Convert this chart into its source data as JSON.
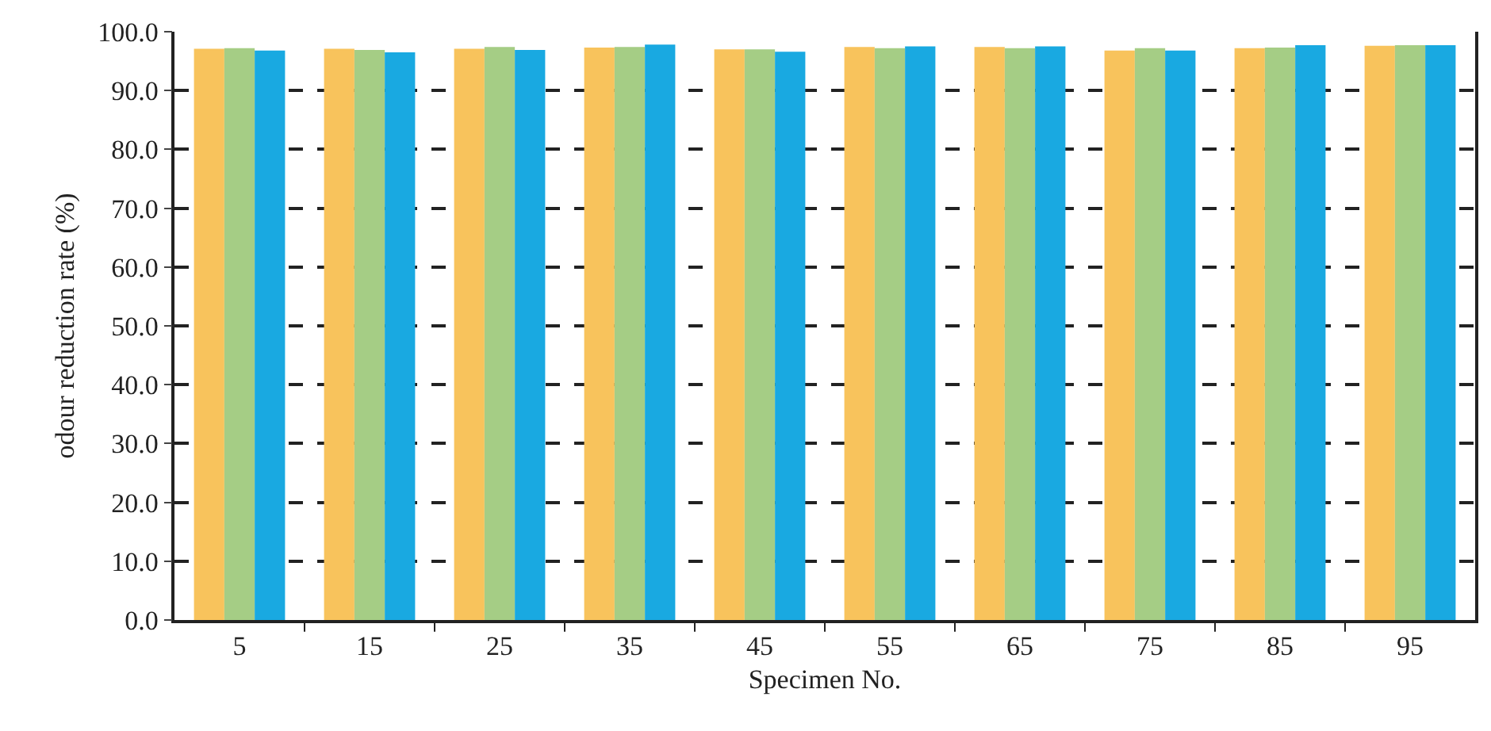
{
  "chart_data": {
    "type": "bar",
    "xlabel": "Specimen No.",
    "ylabel": "odour reduction rate (%)",
    "categories": [
      "5",
      "15",
      "25",
      "35",
      "45",
      "55",
      "65",
      "75",
      "85",
      "95"
    ],
    "series": [
      {
        "color": "#f8c35c",
        "values": [
          97.1,
          97.1,
          97.1,
          97.3,
          97.0,
          97.4,
          97.4,
          96.8,
          97.2,
          97.6
        ]
      },
      {
        "color": "#a5cd85",
        "values": [
          97.2,
          96.9,
          97.4,
          97.4,
          97.0,
          97.2,
          97.2,
          97.2,
          97.3,
          97.7
        ]
      },
      {
        "color": "#19a9e1",
        "values": [
          96.8,
          96.5,
          96.9,
          97.8,
          96.6,
          97.5,
          97.5,
          96.8,
          97.7,
          97.7
        ]
      }
    ],
    "ylim": [
      0,
      100
    ],
    "yticks": [
      {
        "value": 0,
        "label": "0.0"
      },
      {
        "value": 10,
        "label": "10.0"
      },
      {
        "value": 20,
        "label": "20.0"
      },
      {
        "value": 30,
        "label": "30.0"
      },
      {
        "value": 40,
        "label": "40.0"
      },
      {
        "value": 50,
        "label": "50.0"
      },
      {
        "value": 60,
        "label": "60.0"
      },
      {
        "value": 70,
        "label": "70.0"
      },
      {
        "value": 80,
        "label": "80.0"
      },
      {
        "value": 90,
        "label": "90.0"
      },
      {
        "value": 100,
        "label": "100.0"
      }
    ],
    "grid": "y"
  }
}
